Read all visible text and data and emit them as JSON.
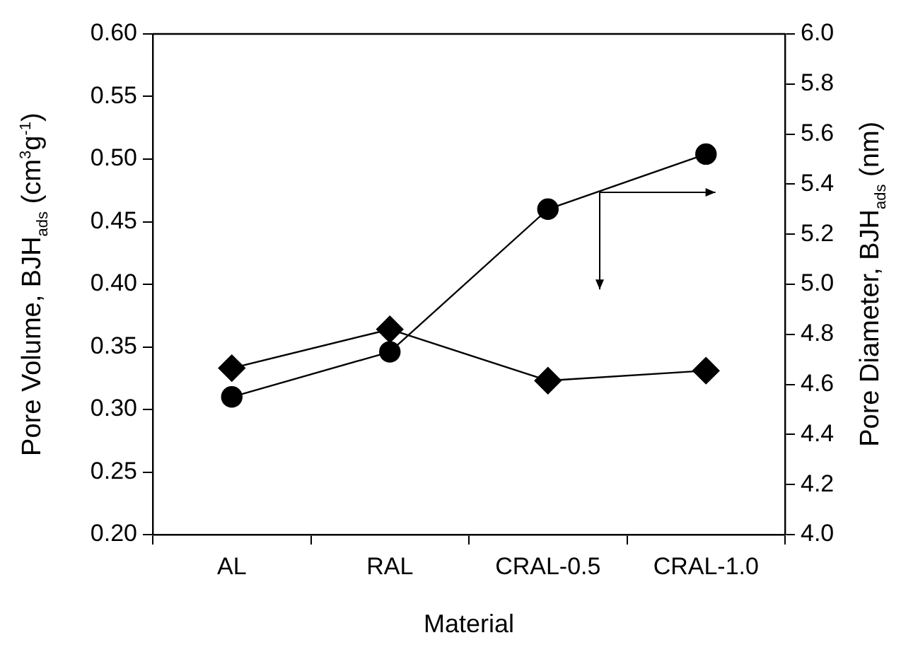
{
  "chart_data": {
    "type": "line",
    "xlabel": "Material",
    "ylabel": "Pore Volume, BJH$_{ads}$ (cm$^{3}$g$^{-1}$)",
    "y2label": "Pore Diameter, BJH$_{ads}$ (nm)",
    "categories": [
      "AL",
      "RAL",
      "CRAL-0.5",
      "CRAL-1.0"
    ],
    "series": [
      {
        "color": "#000000",
        "marker": "diamond",
        "values": [
          0.333,
          0.364,
          0.323,
          0.331
        ]
      },
      {
        "color": "#000000",
        "marker": "circle",
        "axis": "y2",
        "values": [
          4.55,
          4.73,
          5.3,
          5.52
        ]
      }
    ],
    "ylim": [
      0.2,
      0.6
    ],
    "yticks": [
      {
        "value": 0.2,
        "label": "0.20"
      },
      0.25,
      {
        "value": 0.3,
        "label": "0.30"
      },
      0.35,
      {
        "value": 0.4,
        "label": "0.40"
      },
      0.45,
      {
        "value": 0.5,
        "label": "0.50"
      },
      0.55,
      {
        "value": 0.6,
        "label": "0.60"
      }
    ],
    "y2lim": [
      4.0,
      6.0
    ],
    "y2ticks": [
      {
        "value": 4,
        "label": "4.0"
      },
      4.2,
      4.4,
      4.6,
      4.8,
      {
        "value": 5,
        "label": "5.0"
      },
      5.2,
      5.4,
      5.6,
      5.8,
      {
        "value": 6,
        "label": "6.0"
      }
    ],
    "grid": false,
    "legend": false,
    "line_style": "solid"
  }
}
